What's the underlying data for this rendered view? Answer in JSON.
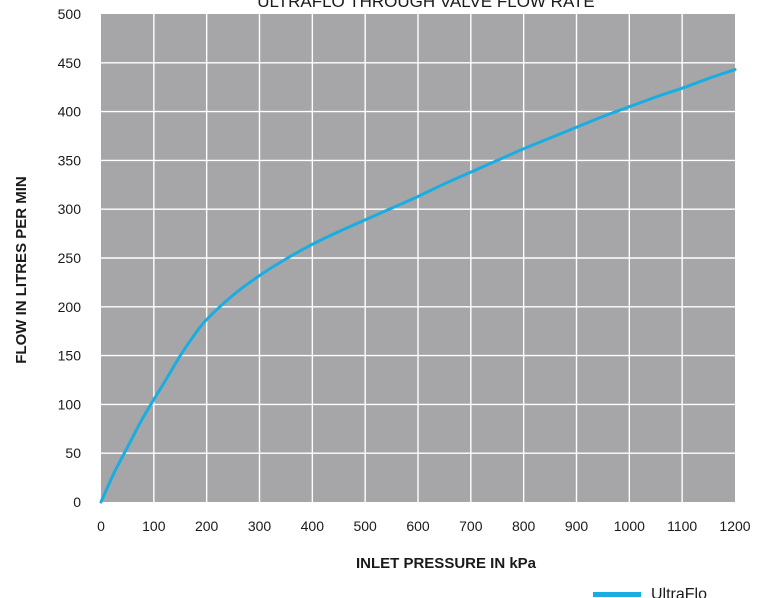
{
  "chart_data": {
    "type": "line",
    "title": "ULTRAFLO THROUGH VALVE FLOW RATE",
    "xlabel": "INLET PRESSURE IN kPa",
    "ylabel": "FLOW IN LITRES PER MIN",
    "xlim": [
      0,
      1200
    ],
    "ylim": [
      0,
      500
    ],
    "xticks": [
      0,
      100,
      200,
      300,
      400,
      500,
      600,
      700,
      800,
      900,
      1000,
      1100,
      1200
    ],
    "yticks": [
      0,
      50,
      100,
      150,
      200,
      250,
      300,
      350,
      400,
      450,
      500
    ],
    "grid": true,
    "legend_position": "bottom-right",
    "colors": {
      "plot_background": "#a6a6a8",
      "grid": "#ffffff",
      "series": "#19ade2"
    },
    "series": [
      {
        "name": "UltraFlo",
        "x": [
          0,
          25,
          50,
          75,
          100,
          125,
          150,
          175,
          200,
          250,
          300,
          350,
          400,
          450,
          500,
          550,
          600,
          650,
          700,
          750,
          800,
          850,
          900,
          950,
          1000,
          1050,
          1100,
          1150,
          1200
        ],
        "y": [
          0,
          30,
          56,
          82,
          105,
          127,
          150,
          170,
          187,
          212,
          232,
          249,
          264,
          277,
          289,
          301,
          313,
          326,
          338,
          350,
          362,
          373,
          384,
          395,
          405,
          415,
          424,
          434,
          443
        ]
      }
    ]
  }
}
